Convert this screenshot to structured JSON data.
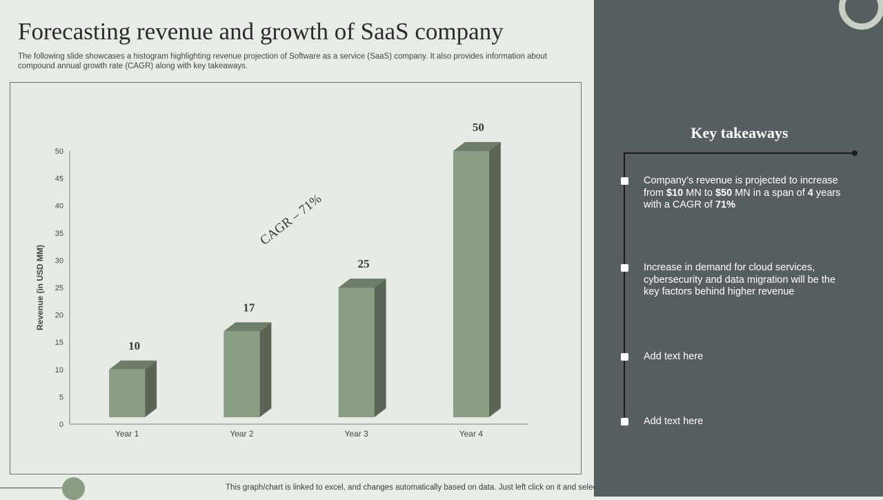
{
  "slide": {
    "title": "Forecasting revenue and growth of SaaS company",
    "subtitle": "The following slide showcases a histogram highlighting revenue projection of Software as a service (SaaS) company. It also provides information about compound annual growth rate (CAGR) along with key takeaways.",
    "footer": "This graph/chart is linked to excel,  and changes automatically based on data. Just left click on it and select Edit Data."
  },
  "chart_data": {
    "type": "bar",
    "categories": [
      "Year 1",
      "Year 2",
      "Year 3",
      "Year 4"
    ],
    "values": [
      10,
      17,
      25,
      50
    ],
    "data_labels": [
      "10",
      "17",
      "25",
      "50"
    ],
    "ylabel": "Revenue (in USD MM)",
    "xlabel": "",
    "ylim": [
      0,
      50
    ],
    "yticks": [
      0,
      5,
      10,
      15,
      20,
      25,
      30,
      35,
      40,
      45,
      50
    ],
    "grid": false,
    "annotation": "CAGR – 71%",
    "colors": {
      "front": "#8a9e85",
      "side": "#5a6556",
      "top": "#6e7d68"
    }
  },
  "key_takeaways": {
    "title": "Key takeaways",
    "items": [
      {
        "segments": [
          {
            "text": "Company’s revenue is projected to increase from ",
            "bold": false
          },
          {
            "text": "$10",
            "bold": true
          },
          {
            "text": " MN to ",
            "bold": false
          },
          {
            "text": "$50",
            "bold": true
          },
          {
            "text": " MN  in a span of ",
            "bold": false
          },
          {
            "text": "4",
            "bold": true
          },
          {
            "text": " years with a CAGR of ",
            "bold": false
          },
          {
            "text": "71%",
            "bold": true
          }
        ]
      },
      {
        "segments": [
          {
            "text": "Increase in demand for cloud services, cybersecurity and data migration will be the key factors behind higher revenue",
            "bold": false
          }
        ]
      },
      {
        "segments": [
          {
            "text": "Add text here",
            "bold": false
          }
        ]
      },
      {
        "segments": [
          {
            "text": "Add text here",
            "bold": false
          }
        ]
      }
    ]
  }
}
